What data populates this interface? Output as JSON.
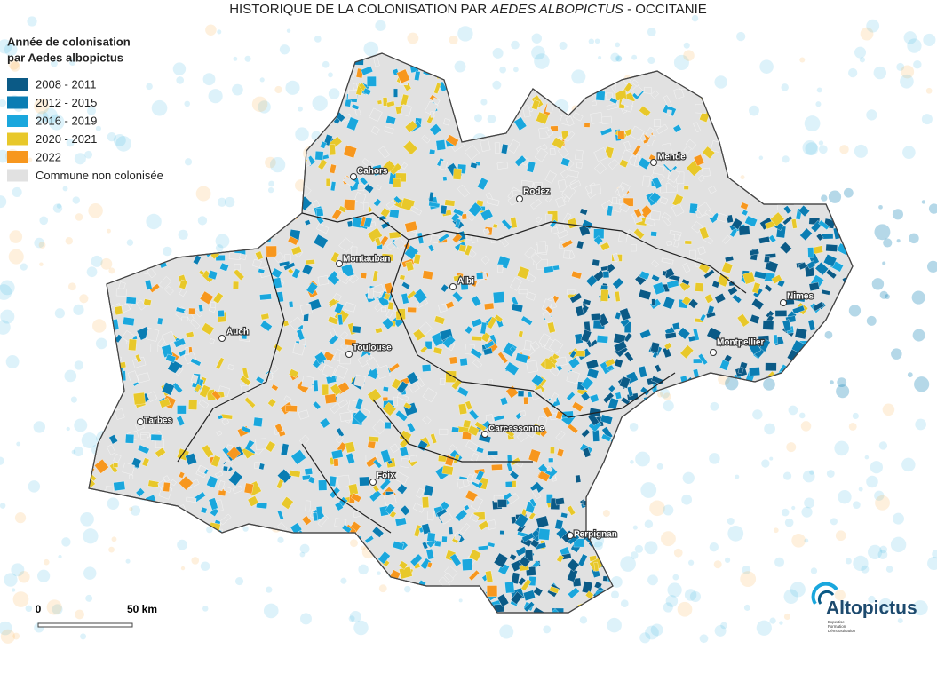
{
  "title": {
    "prefix": "HISTORIQUE DE LA COLONISATION PAR ",
    "emphasis": "AEDES ALBOPICTUS",
    "suffix": " - OCCITANIE"
  },
  "legend": {
    "title_line1": "Année de colonisation",
    "title_line2": "par Aedes albopictus",
    "items": [
      {
        "label": "2008 - 2011",
        "color": "#0b5a86"
      },
      {
        "label": "2012 - 2015",
        "color": "#0a7db3"
      },
      {
        "label": "2016 - 2019",
        "color": "#1aa7dd"
      },
      {
        "label": "2020 - 2021",
        "color": "#e8c82a"
      },
      {
        "label": "2022",
        "color": "#f7971e"
      },
      {
        "label": "Commune non colonisée",
        "color": "#e1e1e1"
      }
    ]
  },
  "cities": [
    "Cahors",
    "Mende",
    "Rodez",
    "Montauban",
    "Albi",
    "Nimes",
    "Auch",
    "Toulouse",
    "Montpellier",
    "Tarbes",
    "Carcassonne",
    "Foix",
    "Perpignan"
  ],
  "scale": {
    "start": "0",
    "end": "50 km"
  },
  "logo": {
    "name": "Altopictus",
    "tagline1": "Expertise",
    "tagline2": "Formation",
    "tagline3": "Démoustication"
  }
}
